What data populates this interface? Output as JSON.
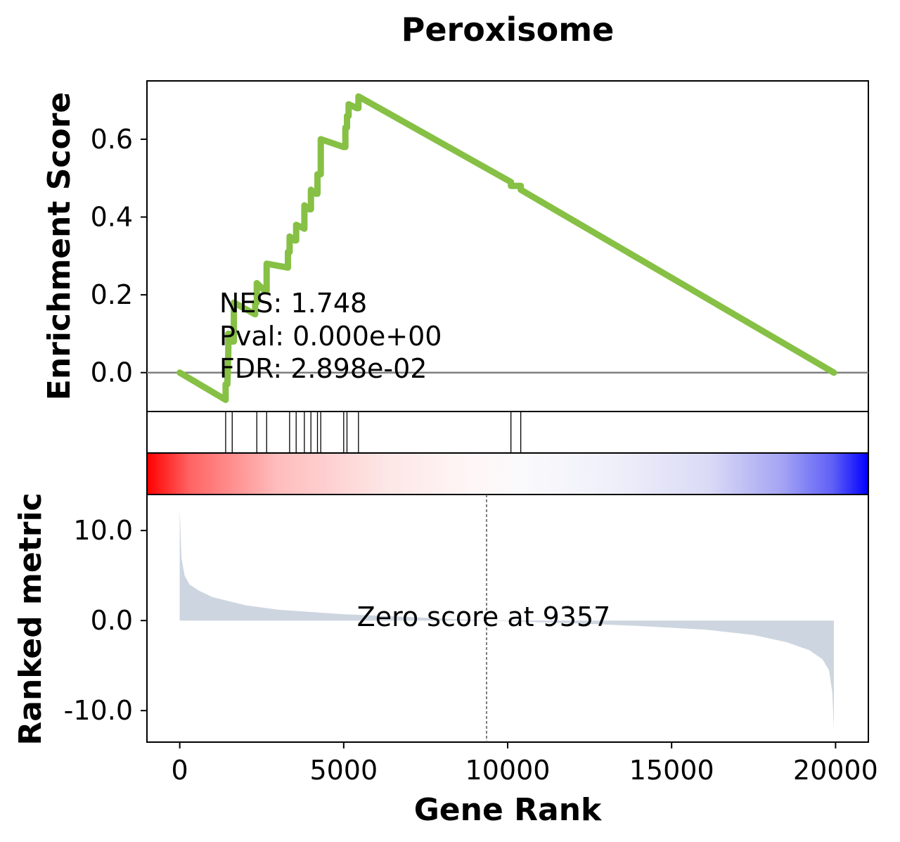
{
  "chart_data": {
    "type": "line",
    "title": "Peroxisome",
    "xlabel": "Gene Rank",
    "xlim": [
      -1000,
      21000
    ],
    "xticks": [
      0,
      5000,
      10000,
      15000,
      20000
    ],
    "xtick_labels": [
      "0",
      "5000",
      "10000",
      "15000",
      "20000"
    ],
    "colors": {
      "es_line": "#86c044",
      "zero_line": "#808080",
      "metric_fill": "#cdd6e0",
      "heat_red": "#ff0000",
      "heat_blue": "#0000ff"
    },
    "enrichment": {
      "ylabel": "Enrichment Score",
      "ylim": [
        -0.1,
        0.75
      ],
      "yticks": [
        0.0,
        0.2,
        0.4,
        0.6
      ],
      "ytick_labels": [
        "0.0",
        "0.2",
        "0.4",
        "0.6"
      ],
      "x": [
        0,
        1400,
        1400,
        1450,
        1480,
        1480,
        1600,
        1650,
        1650,
        2300,
        2300,
        2350,
        2350,
        2600,
        2650,
        2650,
        3300,
        3300,
        3350,
        3350,
        3500,
        3550,
        3550,
        3800,
        3800,
        3950,
        4000,
        4000,
        4150,
        4200,
        4200,
        4300,
        4300,
        5000,
        5050,
        5050,
        5100,
        5100,
        5150,
        5150,
        5400,
        5450,
        5450,
        10100,
        10100,
        10350,
        10400,
        10400,
        19950
      ],
      "y": [
        0.0,
        -0.07,
        -0.03,
        -0.03,
        0.05,
        0.1,
        0.08,
        0.08,
        0.18,
        0.15,
        0.18,
        0.18,
        0.23,
        0.21,
        0.21,
        0.28,
        0.27,
        0.31,
        0.31,
        0.35,
        0.34,
        0.34,
        0.38,
        0.37,
        0.43,
        0.42,
        0.42,
        0.47,
        0.46,
        0.46,
        0.51,
        0.51,
        0.6,
        0.58,
        0.58,
        0.63,
        0.63,
        0.66,
        0.66,
        0.69,
        0.68,
        0.68,
        0.71,
        0.49,
        0.48,
        0.48,
        0.48,
        0.47,
        0.0
      ],
      "nes_text": "NES: 1.748",
      "pval_text": "Pval: 0.000e+00",
      "fdr_text": "FDR: 2.898e-02"
    },
    "hits": [
      1400,
      1600,
      2350,
      2650,
      3350,
      3550,
      3800,
      4000,
      4200,
      4300,
      5000,
      5100,
      5450,
      10100,
      10400
    ],
    "ranked_metric": {
      "ylabel": "Ranked metric",
      "ylim": [
        -13.5,
        14.0
      ],
      "yticks": [
        10.0,
        0.0,
        -10.0
      ],
      "ytick_labels": [
        "10.0",
        "0.0",
        "-10.0"
      ],
      "x": [
        0,
        50,
        150,
        300,
        600,
        1000,
        2000,
        3000,
        5000,
        7000,
        9357,
        12000,
        14000,
        16000,
        17500,
        18500,
        19200,
        19600,
        19800,
        19900,
        19950
      ],
      "y": [
        12.5,
        7.0,
        5.0,
        4.0,
        3.3,
        2.6,
        1.7,
        1.2,
        0.7,
        0.4,
        0.0,
        -0.3,
        -0.6,
        -1.0,
        -1.6,
        -2.4,
        -3.3,
        -4.3,
        -5.5,
        -8.0,
        -12.0
      ],
      "zero_text": "Zero score at 9357",
      "zero_rank": 9357
    }
  }
}
